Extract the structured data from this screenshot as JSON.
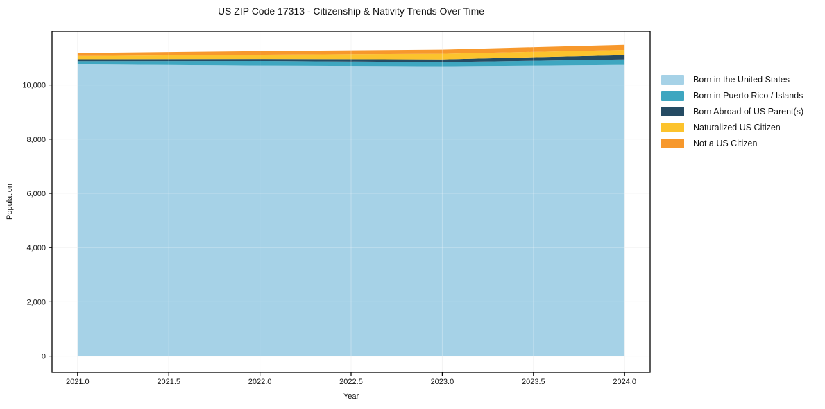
{
  "figure": {
    "background": "#ffffff",
    "frame_color": "#000000",
    "grid_color": "#efefef"
  },
  "chart_data": {
    "type": "area",
    "stacked": true,
    "title": "US ZIP Code 17313 - Citizenship & Nativity Trends Over Time",
    "xlabel": "Year",
    "ylabel": "Population",
    "x": [
      2021,
      2022,
      2023,
      2024
    ],
    "series": [
      {
        "name": "Born in the United States",
        "color": "#a6d2e7",
        "values": [
          10760,
          10715,
          10690,
          10740
        ]
      },
      {
        "name": "Born in Puerto Rico / Islands",
        "color": "#3ea6c0",
        "values": [
          120,
          170,
          155,
          205
        ]
      },
      {
        "name": "Born Abroad of US Parent(s)",
        "color": "#254b63",
        "values": [
          70,
          75,
          100,
          155
        ]
      },
      {
        "name": "Naturalized US Citizen",
        "color": "#fcc32d",
        "values": [
          120,
          155,
          205,
          195
        ]
      },
      {
        "name": "Not a US Citizen",
        "color": "#f7982c",
        "values": [
          110,
          135,
          155,
          185
        ]
      }
    ],
    "x_ticks": [
      {
        "value": 2021.0,
        "label": "2021.0"
      },
      {
        "value": 2021.5,
        "label": "2021.5"
      },
      {
        "value": 2022.0,
        "label": "2022.0"
      },
      {
        "value": 2022.5,
        "label": "2022.5"
      },
      {
        "value": 2023.0,
        "label": "2023.0"
      },
      {
        "value": 2023.5,
        "label": "2023.5"
      },
      {
        "value": 2024.0,
        "label": "2024.0"
      }
    ],
    "y_ticks": [
      {
        "value": 0,
        "label": "0"
      },
      {
        "value": 2000,
        "label": "2,000"
      },
      {
        "value": 4000,
        "label": "4,000"
      },
      {
        "value": 6000,
        "label": "6,000"
      },
      {
        "value": 8000,
        "label": "8,000"
      },
      {
        "value": 10000,
        "label": "10,000"
      }
    ],
    "xlim": [
      2020.86,
      2024.14
    ],
    "ylim": [
      0,
      12000
    ],
    "grid": true,
    "legend_position": "right-outside"
  }
}
